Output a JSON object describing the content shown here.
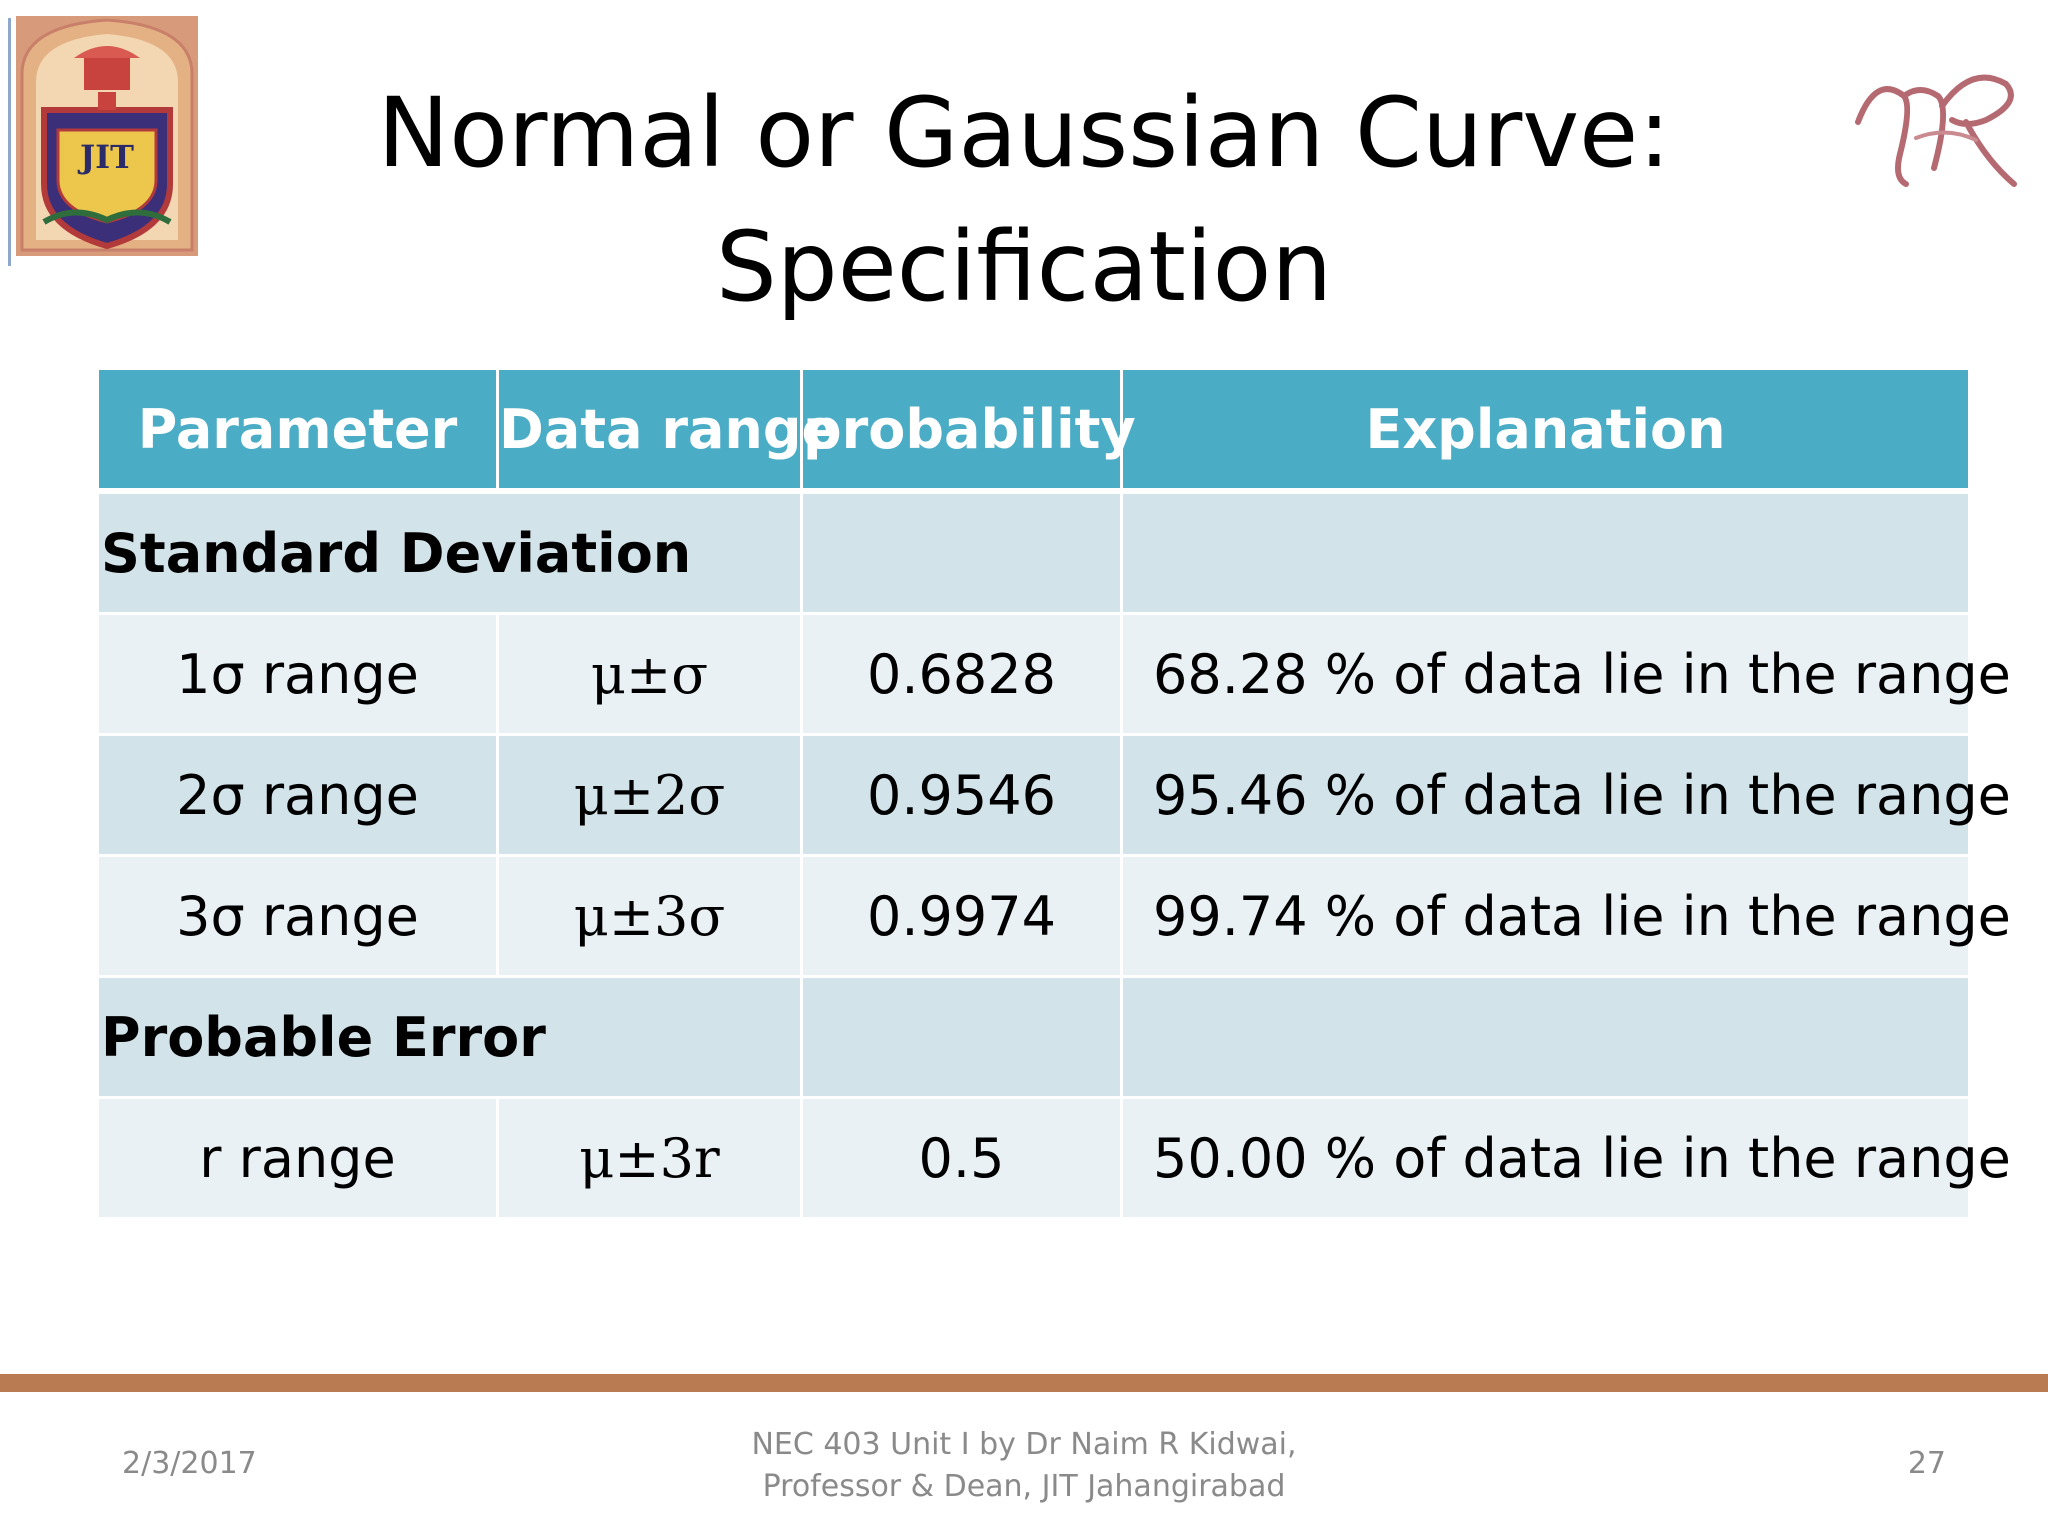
{
  "slide": {
    "title_line1": "Normal or Gaussian Curve:",
    "title_line2": "Specification",
    "logo_text": "JIT"
  },
  "table": {
    "headers": [
      "Parameter",
      "Data range",
      "probability",
      "Explanation"
    ],
    "sections": [
      {
        "label": "Standard Deviation",
        "rows": [
          {
            "parameter": "1σ range",
            "range": "μ±σ",
            "probability": "0.6828",
            "explanation": "68.28 % of data lie in the range"
          },
          {
            "parameter": "2σ range",
            "range": "μ±2σ",
            "probability": "0.9546",
            "explanation": "95.46 % of data lie in the range"
          },
          {
            "parameter": "3σ range",
            "range": "μ±3σ",
            "probability": "0.9974",
            "explanation": "99.74 % of data lie in the range"
          }
        ]
      },
      {
        "label": "Probable Error",
        "rows": [
          {
            "parameter": "r range",
            "range": "μ±3r",
            "probability": "0.5",
            "explanation": "50.00 % of data lie in the range"
          }
        ]
      }
    ]
  },
  "footer": {
    "date": "2/3/2017",
    "center_line1": "NEC 403 Unit I by Dr Naim R Kidwai,",
    "center_line2": "Professor & Dean, JIT Jahangirabad",
    "page_number": "27"
  },
  "colors": {
    "header_fill": "#4bacc6",
    "band_fill": "#d2e3ea",
    "plain_fill": "#eaf1f4",
    "footer_bar": "#b87b52",
    "footer_text": "#8a8a8a"
  },
  "icons": {
    "logo": "institute-crest-logo",
    "signature": "nr-signature-monogram"
  }
}
